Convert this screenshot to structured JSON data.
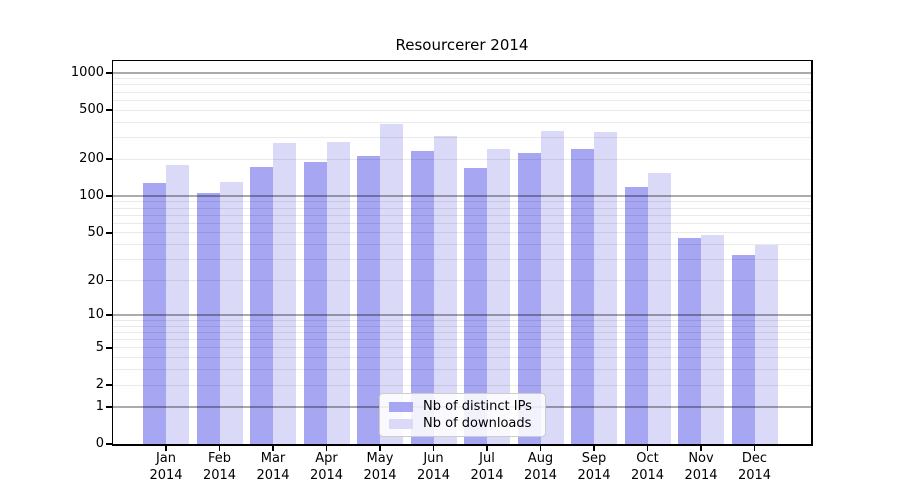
{
  "chart_data": {
    "type": "bar",
    "title": "Resourcerer 2014",
    "categories": [
      "Jan",
      "Feb",
      "Mar",
      "Apr",
      "May",
      "Jun",
      "Jul",
      "Aug",
      "Sep",
      "Oct",
      "Nov",
      "Dec"
    ],
    "category_year": "2014",
    "series": [
      {
        "name": "Nb of distinct IPs",
        "color": "#a6a6f2",
        "values": [
          129,
          107,
          174,
          191,
          212,
          234,
          169,
          223,
          241,
          119,
          45,
          33
        ]
      },
      {
        "name": "Nb of downloads",
        "color": "#dadaf8",
        "values": [
          180,
          131,
          270,
          277,
          384,
          309,
          242,
          341,
          332,
          154,
          48,
          40
        ]
      }
    ],
    "xlabel": "",
    "ylabel": "",
    "y_scale": "log10(value+1) with zero baseline",
    "y_ticks": [
      0,
      1,
      2,
      5,
      10,
      20,
      50,
      100,
      200,
      500,
      1000
    ],
    "ylim": [
      0,
      1250
    ],
    "grid": "horizontal major and minor lines drawn over bars",
    "legend_position": "inside bottom-center"
  },
  "colors": {
    "background": "#ffffff",
    "spine": "#000000",
    "grid_major": "rgba(0,0,0,0.33)",
    "grid_minor": "rgba(0,0,0,0.085)",
    "legend_bg": "rgba(255,255,255,0.85)",
    "legend_border": "#cccccc",
    "text": "#000000"
  }
}
